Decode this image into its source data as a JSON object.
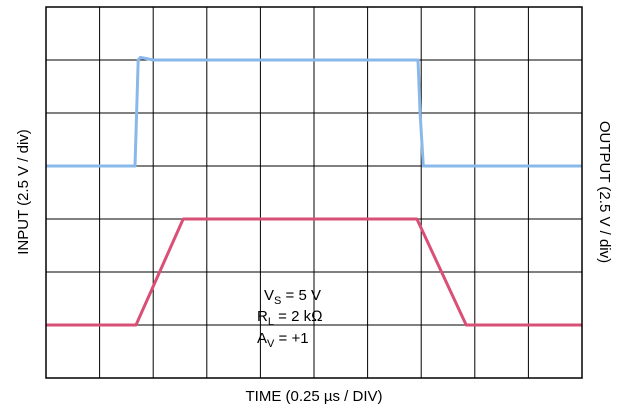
{
  "chart_data": {
    "type": "line",
    "xlabel": "TIME (0.25 µs / DIV)",
    "ylabel_left": "INPUT (2.5 V / div)",
    "ylabel_right": "OUTPUT (2.5 V / div)",
    "grid": true,
    "divisions": {
      "x": 10,
      "y": 7
    },
    "x_unit": "µs",
    "x_per_div": 0.25,
    "xlim": [
      0,
      2.5
    ],
    "y_unit_divs": true,
    "ylim_divs": [
      0,
      7
    ],
    "series": [
      {
        "color": "#8ab8ea",
        "x": [
          0,
          0.415,
          0.43,
          0.44,
          0.5,
          1.5,
          1.735,
          1.745,
          1.76,
          1.9,
          2.5
        ],
        "y": [
          4,
          4,
          6,
          6.05,
          6,
          6,
          6,
          5.0,
          4,
          4,
          4
        ]
      },
      {
        "color": "#d94f76",
        "x": [
          0,
          0.42,
          0.64,
          1.5,
          1.73,
          1.96,
          2.5
        ],
        "y": [
          1,
          1,
          3,
          3,
          3,
          1,
          1
        ]
      }
    ],
    "annotations": [
      {
        "main": "V",
        "sub": "S",
        "rest": " = 5 V"
      },
      {
        "main": "R",
        "sub": "L",
        "rest": " = 2 kΩ"
      },
      {
        "main": "A",
        "sub": "V",
        "rest": " = +1"
      }
    ]
  }
}
